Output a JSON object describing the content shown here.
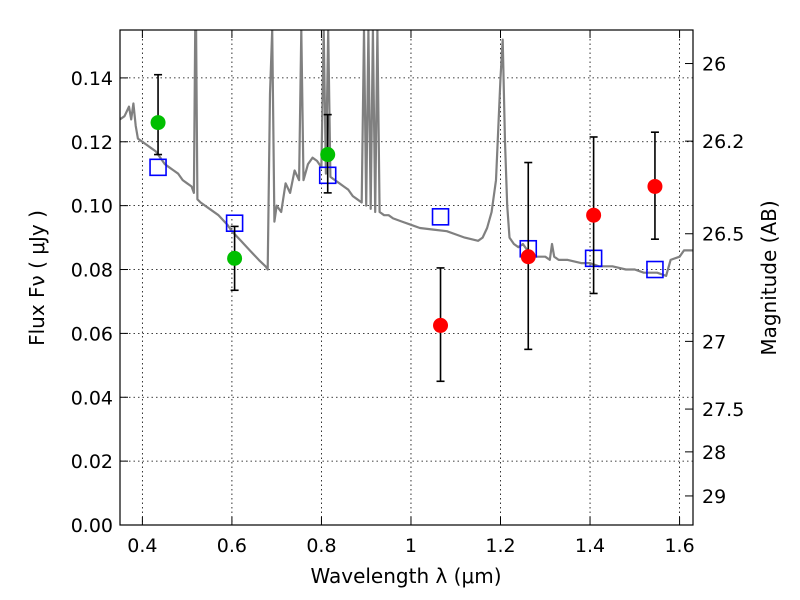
{
  "chart_data": {
    "type": "scatter",
    "xlabel": "Wavelength  λ (μm)",
    "ylabel": "Flux  Fν  ( μJy )",
    "y2label": "Magnitude (AB)",
    "xlim": [
      0.35,
      1.63
    ],
    "ylim": [
      0.0,
      0.155
    ],
    "x_ticks": [
      0.4,
      0.6,
      0.8,
      1.0,
      1.2,
      1.4,
      1.6
    ],
    "x_tick_labels": [
      "0.4",
      "0.6",
      "0.8",
      "1",
      "1.2",
      "1.4",
      "1.6"
    ],
    "y_ticks": [
      0.0,
      0.02,
      0.04,
      0.06,
      0.08,
      0.1,
      0.12,
      0.14
    ],
    "y_tick_labels": [
      "0.00",
      "0.02",
      "0.04",
      "0.06",
      "0.08",
      "0.10",
      "0.12",
      "0.14"
    ],
    "y2_ticks": [
      {
        "label": "26",
        "flux": 0.1445
      },
      {
        "label": "26.2",
        "flux": 0.1202
      },
      {
        "label": "26.5",
        "flux": 0.0912
      },
      {
        "label": "27",
        "flux": 0.0575
      },
      {
        "label": "27.5",
        "flux": 0.0363
      },
      {
        "label": "28",
        "flux": 0.0229
      },
      {
        "label": "29",
        "flux": 0.0091
      }
    ],
    "grid": true,
    "series": [
      {
        "marker": "circle",
        "color": "#00bf00",
        "x": [
          0.435,
          0.606,
          0.814
        ],
        "y": [
          0.126,
          0.0835,
          0.116
        ],
        "yerr_low": [
          0.116,
          0.0735,
          0.104
        ],
        "yerr_high": [
          0.141,
          0.0935,
          0.1285
        ]
      },
      {
        "marker": "circle",
        "color": "#ff0000",
        "x": [
          1.066,
          1.262,
          1.408,
          1.545
        ],
        "y": [
          0.0625,
          0.084,
          0.097,
          0.106
        ],
        "yerr_low": [
          0.045,
          0.055,
          0.0725,
          0.0895
        ],
        "yerr_high": [
          0.0805,
          0.1135,
          0.1215,
          0.123
        ]
      },
      {
        "marker": "open-square",
        "color": "#0000ff",
        "x": [
          0.435,
          0.606,
          0.814,
          1.066,
          1.262,
          1.408,
          1.545
        ],
        "y": [
          0.112,
          0.0945,
          0.1095,
          0.0965,
          0.0865,
          0.0835,
          0.08
        ]
      },
      {
        "marker": "line",
        "color": "#808080",
        "x": [
          0.35,
          0.36,
          0.37,
          0.375,
          0.38,
          0.385,
          0.39,
          0.4,
          0.41,
          0.42,
          0.43,
          0.44,
          0.45,
          0.46,
          0.47,
          0.48,
          0.49,
          0.5,
          0.51,
          0.515,
          0.518,
          0.52,
          0.523,
          0.53,
          0.55,
          0.57,
          0.59,
          0.6,
          0.62,
          0.64,
          0.66,
          0.675,
          0.68,
          0.685,
          0.69,
          0.695,
          0.7,
          0.71,
          0.72,
          0.73,
          0.74,
          0.75,
          0.755,
          0.76,
          0.77,
          0.78,
          0.79,
          0.8,
          0.805,
          0.81,
          0.815,
          0.82,
          0.83,
          0.84,
          0.85,
          0.86,
          0.87,
          0.88,
          0.89,
          0.895,
          0.9,
          0.905,
          0.91,
          0.915,
          0.92,
          0.925,
          0.93,
          0.94,
          0.95,
          0.96,
          0.98,
          1.0,
          1.02,
          1.05,
          1.08,
          1.1,
          1.12,
          1.15,
          1.16,
          1.17,
          1.18,
          1.19,
          1.2,
          1.205,
          1.21,
          1.215,
          1.22,
          1.23,
          1.24,
          1.25,
          1.26,
          1.27,
          1.28,
          1.29,
          1.3,
          1.31,
          1.315,
          1.32,
          1.33,
          1.35,
          1.38,
          1.4,
          1.42,
          1.45,
          1.48,
          1.5,
          1.52,
          1.55,
          1.57,
          1.58,
          1.6,
          1.61,
          1.63
        ],
        "y": [
          0.127,
          0.128,
          0.131,
          0.127,
          0.132,
          0.125,
          0.121,
          0.12,
          0.119,
          0.118,
          0.117,
          0.115,
          0.113,
          0.112,
          0.111,
          0.11,
          0.108,
          0.107,
          0.106,
          0.104,
          0.155,
          0.155,
          0.102,
          0.101,
          0.099,
          0.097,
          0.094,
          0.092,
          0.089,
          0.086,
          0.083,
          0.081,
          0.08,
          0.135,
          0.155,
          0.095,
          0.1,
          0.098,
          0.107,
          0.104,
          0.111,
          0.108,
          0.155,
          0.108,
          0.113,
          0.115,
          0.114,
          0.112,
          0.155,
          0.11,
          0.155,
          0.109,
          0.108,
          0.107,
          0.106,
          0.105,
          0.103,
          0.102,
          0.101,
          0.155,
          0.1,
          0.155,
          0.099,
          0.155,
          0.098,
          0.155,
          0.098,
          0.097,
          0.097,
          0.096,
          0.095,
          0.094,
          0.093,
          0.0925,
          0.092,
          0.091,
          0.09,
          0.089,
          0.09,
          0.093,
          0.098,
          0.108,
          0.14,
          0.152,
          0.12,
          0.1,
          0.09,
          0.088,
          0.087,
          0.088,
          0.086,
          0.085,
          0.084,
          0.084,
          0.084,
          0.083,
          0.088,
          0.084,
          0.083,
          0.083,
          0.082,
          0.082,
          0.081,
          0.081,
          0.08,
          0.08,
          0.079,
          0.079,
          0.078,
          0.083,
          0.084,
          0.086,
          0.086
        ]
      }
    ]
  }
}
